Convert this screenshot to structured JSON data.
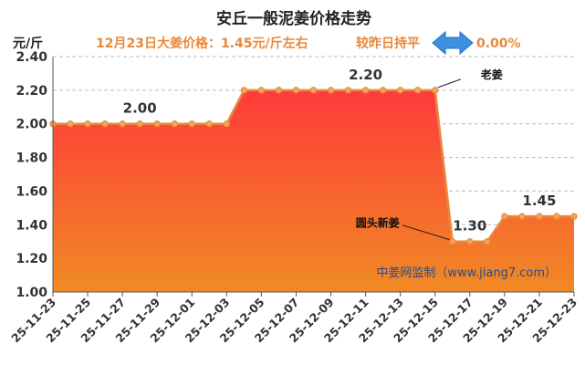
{
  "chart_data": {
    "type": "area",
    "title": "安丘一般泥姜价格走势",
    "subtitle": "12月23日大姜价格：1.45元/斤左右",
    "change_label": "较昨日持平",
    "change_value": "0.00%",
    "ylabel": "元/斤",
    "ylim": [
      1.0,
      2.4
    ],
    "yticks": [
      "1.00",
      "1.20",
      "1.40",
      "1.60",
      "1.80",
      "2.00",
      "2.20",
      "2.40"
    ],
    "x": [
      "25-11-23",
      "25-11-24",
      "25-11-25",
      "25-11-26",
      "25-11-27",
      "25-11-28",
      "25-11-29",
      "25-11-30",
      "25-12-01",
      "25-12-02",
      "25-12-03",
      "25-12-04",
      "25-12-05",
      "25-12-06",
      "25-12-07",
      "25-12-08",
      "25-12-09",
      "25-12-10",
      "25-12-11",
      "25-12-12",
      "25-12-13",
      "25-12-14",
      "25-12-15",
      "25-12-16",
      "25-12-17",
      "25-12-18",
      "25-12-19",
      "25-12-20",
      "25-12-21",
      "25-12-22",
      "25-12-23"
    ],
    "xticks": [
      "25-11-23",
      "25-11-25",
      "25-11-27",
      "25-11-29",
      "25-12-01",
      "25-12-03",
      "25-12-05",
      "25-12-07",
      "25-12-09",
      "25-12-11",
      "25-12-13",
      "25-12-15",
      "25-12-17",
      "25-12-19",
      "25-12-21",
      "25-12-23"
    ],
    "values": [
      2.0,
      2.0,
      2.0,
      2.0,
      2.0,
      2.0,
      2.0,
      2.0,
      2.0,
      2.0,
      2.0,
      2.2,
      2.2,
      2.2,
      2.2,
      2.2,
      2.2,
      2.2,
      2.2,
      2.2,
      2.2,
      2.2,
      2.2,
      1.3,
      1.3,
      1.3,
      1.45,
      1.45,
      1.45,
      1.45,
      1.45
    ],
    "data_labels": [
      {
        "index": 5,
        "text": "2.00"
      },
      {
        "index": 18,
        "text": "2.20"
      },
      {
        "index": 24,
        "text": "1.30"
      },
      {
        "index": 28,
        "text": "1.45"
      }
    ],
    "annotations": [
      {
        "index": 22,
        "text": "老姜"
      },
      {
        "index": 23,
        "text": "圆头新姜"
      }
    ],
    "watermark": "中姜网监制（www.jiang7.com）",
    "grid": "horizontal dashed",
    "colors": {
      "line": "#e8893c",
      "marker_fill": "#f5a25e",
      "area_top": "#ff3b3b",
      "area_bottom": "#f08a24",
      "subtitle": "#e8893c",
      "arrow": "#3d8fe0"
    }
  }
}
